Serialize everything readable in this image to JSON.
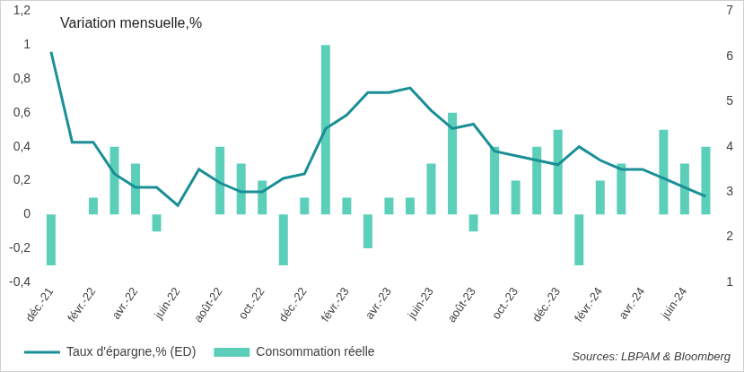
{
  "chart_data": {
    "type": "bar",
    "title": "Variation mensuelle,%",
    "annotations": [
      "Sources: LBPAM & Bloomberg"
    ],
    "categories": [
      "déc.-21",
      null,
      "févr.-22",
      null,
      "avr.-22",
      null,
      "juin-22",
      null,
      "août-22",
      null,
      "oct.-22",
      null,
      "déc.-22",
      null,
      "févr.-23",
      null,
      "avr.-23",
      null,
      "juin-23",
      null,
      "août-23",
      null,
      "oct.-23",
      null,
      "déc.-23",
      null,
      "févr.-24",
      null,
      "avr.-24",
      null,
      "juin-24",
      null
    ],
    "series": [
      {
        "name": "Consommation réelle",
        "type": "bar",
        "color": "#5ccfbb",
        "values": [
          -0.3,
          0,
          0.1,
          0.4,
          0.3,
          -0.1,
          0,
          0,
          0.4,
          0.3,
          0.2,
          -0.3,
          0.1,
          1.0,
          0.1,
          -0.2,
          0.1,
          0.1,
          0.3,
          0.6,
          -0.1,
          0.4,
          0.2,
          0.4,
          0.5,
          -0.3,
          0.2,
          0.3,
          0,
          0.5,
          0.3,
          0.4
        ]
      },
      {
        "name": "Taux d'épargne,% (ED)",
        "type": "line",
        "axis": "y2",
        "color": "#1a8f96",
        "marker": "none",
        "line_style": "solid",
        "values": [
          6.1,
          4.1,
          4.1,
          3.4,
          3.1,
          3.1,
          2.7,
          3.5,
          3.2,
          3.0,
          3.0,
          3.3,
          3.4,
          4.4,
          4.7,
          5.2,
          5.2,
          5.3,
          4.8,
          4.4,
          4.5,
          3.9,
          3.8,
          3.7,
          3.6,
          4.0,
          3.7,
          3.5,
          3.5,
          3.3,
          3.1,
          2.9
        ]
      }
    ],
    "ylim": [
      -0.4,
      1.2
    ],
    "yticks": [
      {
        "value": -0.4,
        "label": "-0,4"
      },
      {
        "value": -0.2,
        "label": "-0,2"
      },
      0,
      {
        "value": 0.2,
        "label": "0,2"
      },
      {
        "value": 0.4,
        "label": "0,4"
      },
      {
        "value": 0.6,
        "label": "0,6"
      },
      {
        "value": 0.8,
        "label": "0,8"
      },
      1,
      {
        "value": 1.2,
        "label": "1,2"
      }
    ],
    "y2lim": [
      1,
      7
    ],
    "y2ticks": [
      1,
      2,
      3,
      4,
      5,
      6,
      7
    ],
    "grid": false,
    "legend": "bottom"
  }
}
